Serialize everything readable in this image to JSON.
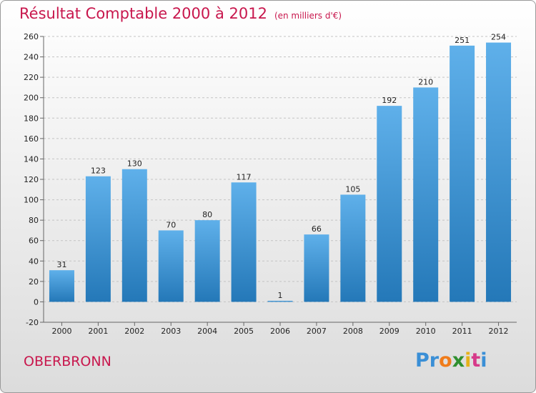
{
  "header": {
    "title": "Résultat Comptable 2000 à 2012",
    "subtitle": "(en milliers d'€)"
  },
  "footer": {
    "town": "OBERBRONN",
    "logo_text": "Proxiti"
  },
  "colors": {
    "title": "#c8174d",
    "bar_top": "#5fb0ea",
    "bar_bottom": "#2478b8",
    "grid": "#c4c4c4"
  },
  "chart_data": {
    "type": "bar",
    "title": "Résultat Comptable 2000 à 2012",
    "subtitle": "(en milliers d'€)",
    "xlabel": "",
    "ylabel": "",
    "categories": [
      "2000",
      "2001",
      "2002",
      "2003",
      "2004",
      "2005",
      "2006",
      "2007",
      "2008",
      "2009",
      "2010",
      "2011",
      "2012"
    ],
    "values": [
      31,
      123,
      130,
      70,
      80,
      117,
      1,
      66,
      105,
      192,
      210,
      251,
      254
    ],
    "ylim": [
      -20,
      260
    ],
    "yticks": [
      -20,
      0,
      20,
      40,
      60,
      80,
      100,
      120,
      140,
      160,
      180,
      200,
      220,
      240,
      260
    ],
    "grid": "horizontal dashed",
    "legend": "none"
  }
}
